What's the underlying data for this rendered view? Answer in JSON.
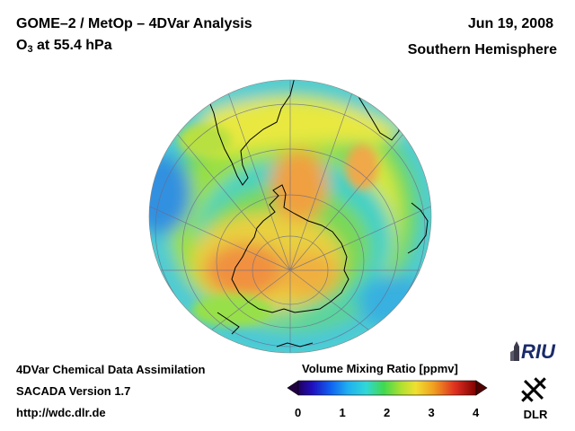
{
  "header": {
    "title": "GOME–2 / MetOp – 4DVar Analysis",
    "species": "O",
    "species_subscript": "3",
    "level": " at 55.4 hPa",
    "date": "Jun 19, 2008",
    "hemisphere": "Southern Hemisphere"
  },
  "footer": {
    "line1": "4DVar Chemical Data Assimilation",
    "line2": "SACADA Version 1.7",
    "line3": "http://wdc.dlr.de"
  },
  "colorbar": {
    "title": "Volume Mixing Ratio [ppmv]",
    "min": 0,
    "max": 4,
    "ticks": [
      "0",
      "1",
      "2",
      "3",
      "4"
    ]
  },
  "logos": {
    "riu": "RIU",
    "dlr": "DLR"
  },
  "colors": {
    "ozone_low": "#1a0080",
    "ozone_mid": "#30d040",
    "ozone_high": "#e83020",
    "background": "#ffffff"
  }
}
